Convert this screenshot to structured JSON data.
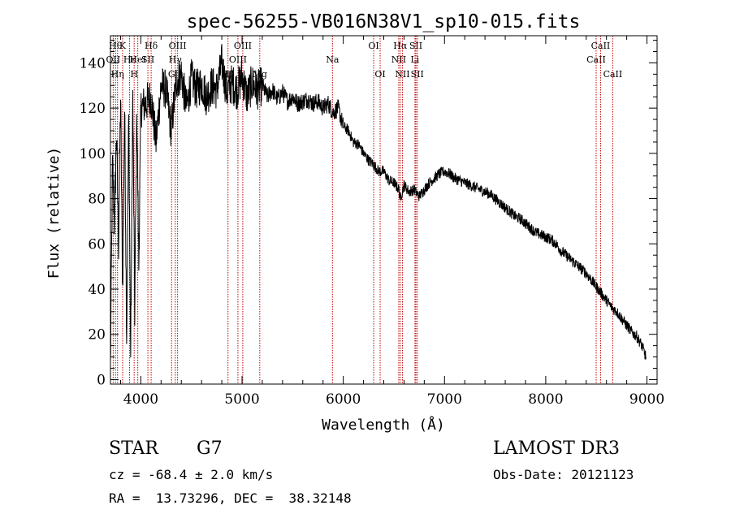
{
  "chart_data": {
    "type": "line",
    "title": "spec-56255-VB016N38V1_sp10-015.fits",
    "xlabel": "Wavelength (Å)",
    "ylabel": "Flux (relative)",
    "xlim": [
      3700,
      9100
    ],
    "ylim": [
      -2,
      152
    ],
    "xticks": [
      4000,
      5000,
      6000,
      7000,
      8000,
      9000
    ],
    "yticks": [
      0,
      20,
      40,
      60,
      80,
      100,
      120,
      140
    ],
    "series": [
      {
        "name": "flux",
        "x": [
          3700,
          3720,
          3740,
          3760,
          3780,
          3800,
          3820,
          3840,
          3860,
          3880,
          3900,
          3920,
          3940,
          3960,
          3980,
          4000,
          4050,
          4100,
          4150,
          4200,
          4250,
          4300,
          4350,
          4400,
          4450,
          4500,
          4550,
          4600,
          4650,
          4700,
          4750,
          4800,
          4850,
          4900,
          4950,
          5000,
          5050,
          5100,
          5150,
          5200,
          5250,
          5300,
          5350,
          5400,
          5450,
          5500,
          5550,
          5600,
          5650,
          5700,
          5750,
          5800,
          5850,
          5900,
          5950,
          6000,
          6050,
          6100,
          6150,
          6200,
          6250,
          6300,
          6350,
          6400,
          6450,
          6500,
          6550,
          6563,
          6600,
          6650,
          6700,
          6750,
          6800,
          6850,
          6900,
          6950,
          7000,
          7050,
          7100,
          7150,
          7200,
          7250,
          7300,
          7350,
          7400,
          7450,
          7500,
          7550,
          7600,
          7650,
          7700,
          7750,
          7800,
          7850,
          7900,
          7950,
          8000,
          8050,
          8100,
          8150,
          8200,
          8250,
          8300,
          8350,
          8400,
          8450,
          8500,
          8550,
          8600,
          8650,
          8700,
          8750,
          8800,
          8850,
          8900,
          8950,
          8990
        ],
        "values": [
          5,
          95,
          70,
          110,
          60,
          125,
          40,
          120,
          20,
          115,
          10,
          125,
          30,
          120,
          50,
          120,
          122,
          125,
          105,
          130,
          128,
          110,
          132,
          135,
          120,
          133,
          128,
          131,
          125,
          130,
          128,
          140,
          127,
          131,
          128,
          134,
          125,
          131,
          128,
          130,
          125,
          128,
          124,
          127,
          123,
          125,
          122,
          123,
          124,
          122,
          123,
          120,
          122,
          118,
          120,
          112,
          110,
          105,
          104,
          100,
          97,
          95,
          92,
          92,
          88,
          87,
          84,
          80,
          86,
          83,
          84,
          81,
          84,
          87,
          89,
          91,
          92,
          91,
          89,
          88,
          87,
          86,
          85,
          84,
          83,
          82,
          80,
          78,
          76,
          74,
          72,
          71,
          69,
          67,
          65,
          64,
          63,
          62,
          60,
          57,
          55,
          53,
          51,
          49,
          47,
          44,
          41,
          38,
          35,
          32,
          30,
          27,
          24,
          21,
          19,
          15,
          10
        ]
      }
    ],
    "lines": [
      {
        "wave": 3750,
        "text": "Hθ",
        "row": 0
      },
      {
        "wave": 3820,
        "text": "K",
        "row": 0
      },
      {
        "wave": 3889,
        "text": "Hε",
        "row": 1
      },
      {
        "wave": 3934,
        "text": "H",
        "row": 2
      },
      {
        "wave": 3727,
        "text": "OII",
        "row": 1
      },
      {
        "wave": 3970,
        "text": "HeI",
        "row": 1
      },
      {
        "wave": 3770,
        "text": "Hη",
        "row": 2
      },
      {
        "wave": 4070,
        "text": "SII",
        "row": 1
      },
      {
        "wave": 4102,
        "text": "Hδ",
        "row": 0
      },
      {
        "wave": 4340,
        "text": "Hγ",
        "row": 1
      },
      {
        "wave": 4363,
        "text": "OIII",
        "row": 0
      },
      {
        "wave": 4304,
        "text": "G",
        "row": 2
      },
      {
        "wave": 4861,
        "text": "Hβ",
        "row": 2
      },
      {
        "wave": 4959,
        "text": "OIII",
        "row": 1
      },
      {
        "wave": 5007,
        "text": "OIII",
        "row": 0
      },
      {
        "wave": 5175,
        "text": "Mg",
        "row": 2
      },
      {
        "wave": 5893,
        "text": "Na",
        "row": 1
      },
      {
        "wave": 6300,
        "text": "OI",
        "row": 0
      },
      {
        "wave": 6364,
        "text": "OI",
        "row": 2
      },
      {
        "wave": 6548,
        "text": "NII",
        "row": 1
      },
      {
        "wave": 6563,
        "text": "Hα",
        "row": 0
      },
      {
        "wave": 6584,
        "text": "NII",
        "row": 2
      },
      {
        "wave": 6708,
        "text": "Li",
        "row": 1
      },
      {
        "wave": 6717,
        "text": "SII",
        "row": 0
      },
      {
        "wave": 6731,
        "text": "SII",
        "row": 2
      },
      {
        "wave": 8498,
        "text": "CaII",
        "row": 1
      },
      {
        "wave": 8542,
        "text": "CaII",
        "row": 0
      },
      {
        "wave": 8662,
        "text": "CaII",
        "row": 2
      }
    ]
  },
  "footer": {
    "class_label": "STAR",
    "subclass": "G7",
    "survey": "LAMOST DR3",
    "cz": "cz = -68.4 ± 2.0 km/s",
    "obs_date": "Obs-Date: 20121123",
    "coords": "RA =  13.73296, DEC =  38.32148"
  },
  "colors": {
    "spectrum": "#000000",
    "line_markers": "#c00000",
    "axes": "#000000"
  }
}
